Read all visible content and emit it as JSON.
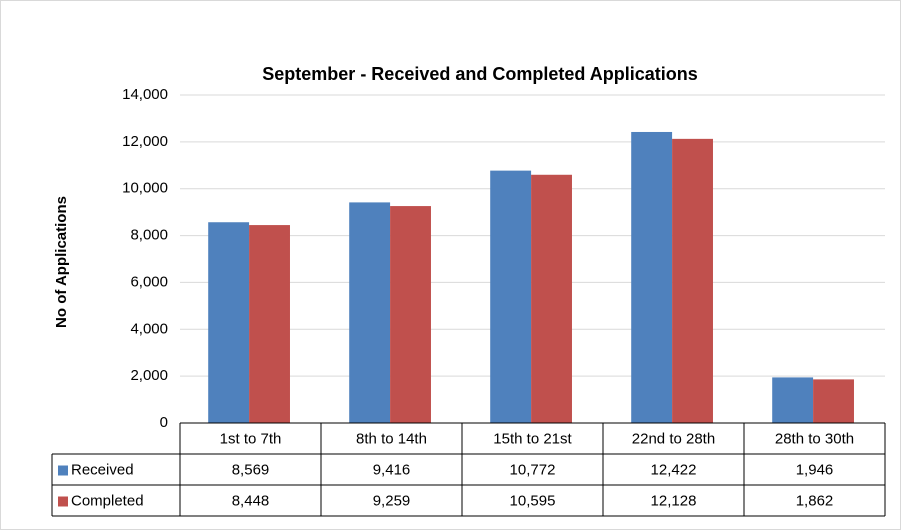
{
  "chart_data": {
    "type": "bar",
    "title": "September - Received and Completed Applications",
    "y_label": "No of Applications",
    "categories": [
      "1st to 7th",
      "8th to 14th",
      "15th to 21st",
      "22nd to 28th",
      "28th to 30th"
    ],
    "series": [
      {
        "name": "Received",
        "color": "#4f81bd",
        "values": [
          8569,
          9416,
          10772,
          12422,
          1946
        ],
        "value_labels": [
          "8,569",
          "9,416",
          "10,772",
          "12,422",
          "1,946"
        ]
      },
      {
        "name": "Completed",
        "color": "#c0504d",
        "values": [
          8448,
          9259,
          10595,
          12128,
          1862
        ],
        "value_labels": [
          "8,448",
          "9,259",
          "10,595",
          "12,128",
          "1,862"
        ]
      }
    ],
    "ylim": [
      0,
      14000
    ],
    "yticks": [
      0,
      {
        "value": 2000,
        "label": "2,000"
      },
      {
        "value": 4000,
        "label": "4,000"
      },
      {
        "value": 6000,
        "label": "6,000"
      },
      {
        "value": 8000,
        "label": "8,000"
      },
      {
        "value": 10000,
        "label": "10,000"
      },
      {
        "value": 12000,
        "label": "12,000"
      },
      {
        "value": 14000,
        "label": "14,000"
      }
    ],
    "grid": true
  }
}
